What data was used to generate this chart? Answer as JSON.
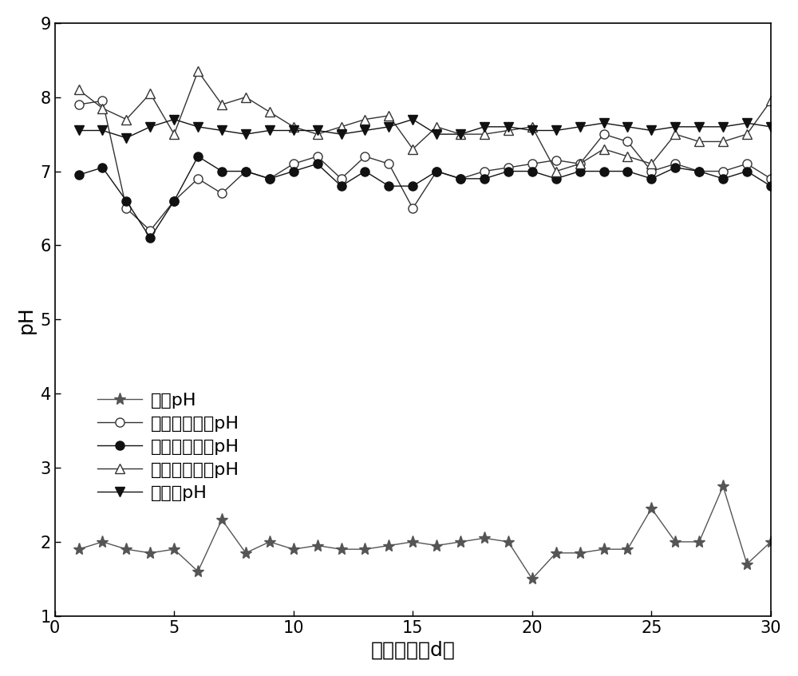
{
  "title": "",
  "xlabel": "运行时间（d）",
  "ylabel": "pH",
  "xlim": [
    0,
    30
  ],
  "ylim": [
    1,
    9
  ],
  "xticks": [
    0,
    5,
    10,
    15,
    20,
    25,
    30
  ],
  "yticks": [
    1,
    2,
    3,
    4,
    5,
    6,
    7,
    8,
    9
  ],
  "series": {
    "进水pH": {
      "x": [
        1,
        2,
        3,
        4,
        5,
        6,
        7,
        8,
        9,
        10,
        11,
        12,
        13,
        14,
        15,
        16,
        17,
        18,
        19,
        20,
        21,
        22,
        23,
        24,
        25,
        26,
        27,
        28,
        29,
        30
      ],
      "y": [
        1.9,
        2.0,
        1.9,
        1.85,
        1.9,
        1.6,
        2.3,
        1.85,
        2.0,
        1.9,
        1.95,
        1.9,
        1.9,
        1.95,
        2.0,
        1.95,
        2.0,
        2.05,
        2.0,
        1.5,
        1.85,
        1.85,
        1.9,
        1.9,
        2.45,
        2.0,
        2.0,
        2.75,
        1.7,
        2.0
      ],
      "marker": "*",
      "color": "#555555",
      "markersize": 11,
      "markerfacecolor": "#555555",
      "markeredgecolor": "#555555",
      "linestyle": "-",
      "linewidth": 1.0
    },
    "一级物化出水pH": {
      "x": [
        1,
        2,
        3,
        4,
        5,
        6,
        7,
        8,
        9,
        10,
        11,
        12,
        13,
        14,
        15,
        16,
        17,
        18,
        19,
        20,
        21,
        22,
        23,
        24,
        25,
        26,
        27,
        28,
        29,
        30
      ],
      "y": [
        7.9,
        7.95,
        6.5,
        6.2,
        6.6,
        6.9,
        6.7,
        7.0,
        6.9,
        7.1,
        7.2,
        6.9,
        7.2,
        7.1,
        6.5,
        7.0,
        6.9,
        7.0,
        7.05,
        7.1,
        7.15,
        7.1,
        7.5,
        7.4,
        7.0,
        7.1,
        7.0,
        7.0,
        7.1,
        6.9
      ],
      "marker": "o",
      "color": "#333333",
      "markersize": 8,
      "markerfacecolor": "white",
      "markeredgecolor": "#333333",
      "linestyle": "-",
      "linewidth": 1.0
    },
    "二级物化出水pH": {
      "x": [
        1,
        2,
        3,
        4,
        5,
        6,
        7,
        8,
        9,
        10,
        11,
        12,
        13,
        14,
        15,
        16,
        17,
        18,
        19,
        20,
        21,
        22,
        23,
        24,
        25,
        26,
        27,
        28,
        29,
        30
      ],
      "y": [
        6.95,
        7.05,
        6.6,
        6.1,
        6.6,
        7.2,
        7.0,
        7.0,
        6.9,
        7.0,
        7.1,
        6.8,
        7.0,
        6.8,
        6.8,
        7.0,
        6.9,
        6.9,
        7.0,
        7.0,
        6.9,
        7.0,
        7.0,
        7.0,
        6.9,
        7.05,
        7.0,
        6.9,
        7.0,
        6.8
      ],
      "marker": "o",
      "color": "#111111",
      "markersize": 8,
      "markerfacecolor": "#111111",
      "markeredgecolor": "#111111",
      "linestyle": "-",
      "linewidth": 1.0
    },
    "三级物化出水pH": {
      "x": [
        1,
        2,
        3,
        4,
        5,
        6,
        7,
        8,
        9,
        10,
        11,
        12,
        13,
        14,
        15,
        16,
        17,
        18,
        19,
        20,
        21,
        22,
        23,
        24,
        25,
        26,
        27,
        28,
        29,
        30
      ],
      "y": [
        8.1,
        7.85,
        7.7,
        8.05,
        7.5,
        8.35,
        7.9,
        8.0,
        7.8,
        7.6,
        7.5,
        7.6,
        7.7,
        7.75,
        7.3,
        7.6,
        7.5,
        7.5,
        7.55,
        7.6,
        7.0,
        7.1,
        7.3,
        7.2,
        7.1,
        7.5,
        7.4,
        7.4,
        7.5,
        7.95
      ],
      "marker": "^",
      "color": "#333333",
      "markersize": 8,
      "markerfacecolor": "white",
      "markeredgecolor": "#333333",
      "linestyle": "-",
      "linewidth": 1.0
    },
    "总排口pH": {
      "x": [
        1,
        2,
        3,
        4,
        5,
        6,
        7,
        8,
        9,
        10,
        11,
        12,
        13,
        14,
        15,
        16,
        17,
        18,
        19,
        20,
        21,
        22,
        23,
        24,
        25,
        26,
        27,
        28,
        29,
        30
      ],
      "y": [
        7.55,
        7.55,
        7.45,
        7.6,
        7.7,
        7.6,
        7.55,
        7.5,
        7.55,
        7.55,
        7.55,
        7.5,
        7.55,
        7.6,
        7.7,
        7.5,
        7.5,
        7.6,
        7.6,
        7.55,
        7.55,
        7.6,
        7.65,
        7.6,
        7.55,
        7.6,
        7.6,
        7.6,
        7.65,
        7.6
      ],
      "marker": "v",
      "color": "#111111",
      "markersize": 8,
      "markerfacecolor": "#111111",
      "markeredgecolor": "#111111",
      "linestyle": "-",
      "linewidth": 1.0
    }
  },
  "legend_order": [
    "进水pH",
    "一级物化出水pH",
    "二级物化出水pH",
    "三级物化出水pH",
    "总排口pH"
  ],
  "font_size": 16,
  "label_font_size": 18,
  "tick_font_size": 15
}
